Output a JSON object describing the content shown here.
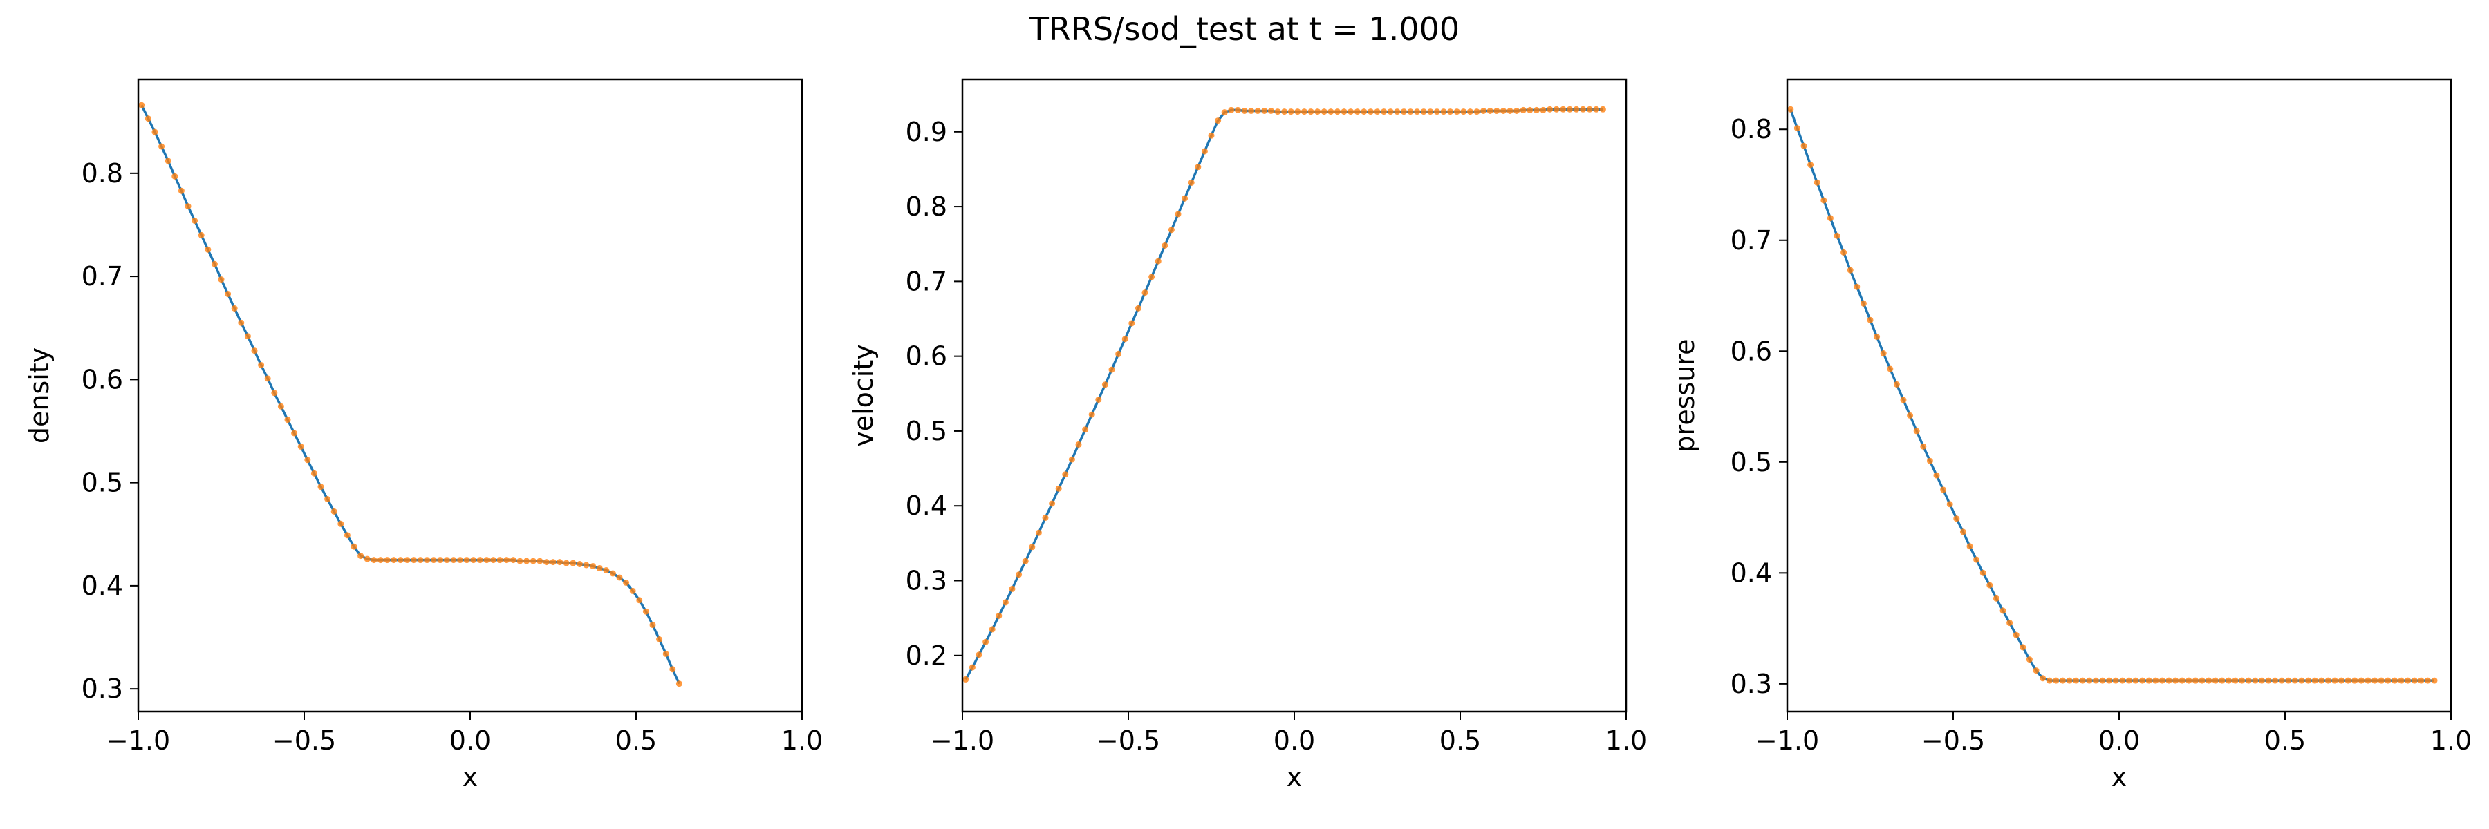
{
  "figure": {
    "title": "TRRS/sod_test at t = 1.000"
  },
  "colors": {
    "line": "#1f77b4",
    "marker": "#ff7f0e",
    "axes": "#000000",
    "background": "#ffffff"
  },
  "chart_data": [
    {
      "type": "line",
      "title": "",
      "xlabel": "x",
      "ylabel": "density",
      "xlim": [
        -1.0,
        1.0
      ],
      "ylim": [
        0.278,
        0.891
      ],
      "xticks": [
        -1.0,
        -0.5,
        0.0,
        0.5,
        1.0
      ],
      "xtick_labels": [
        "−1.0",
        "−0.5",
        "0.0",
        "0.5",
        "1.0"
      ],
      "yticks": [
        0.3,
        0.4,
        0.5,
        0.6,
        0.7,
        0.8
      ],
      "ytick_labels": [
        "0.3",
        "0.4",
        "0.5",
        "0.6",
        "0.7",
        "0.8"
      ],
      "series": [
        {
          "name": "density",
          "x_start": -0.99,
          "x_step": 0.02,
          "values": [
            0.866,
            0.853,
            0.84,
            0.826,
            0.812,
            0.797,
            0.783,
            0.768,
            0.754,
            0.74,
            0.726,
            0.712,
            0.697,
            0.683,
            0.669,
            0.655,
            0.642,
            0.628,
            0.614,
            0.601,
            0.587,
            0.574,
            0.561,
            0.548,
            0.535,
            0.522,
            0.509,
            0.496,
            0.484,
            0.472,
            0.46,
            0.449,
            0.438,
            0.429,
            0.426,
            0.425,
            0.425,
            0.425,
            0.425,
            0.425,
            0.425,
            0.425,
            0.425,
            0.425,
            0.425,
            0.425,
            0.425,
            0.425,
            0.425,
            0.425,
            0.425,
            0.425,
            0.425,
            0.425,
            0.425,
            0.425,
            0.425,
            0.424,
            0.424,
            0.424,
            0.424,
            0.423,
            0.423,
            0.423,
            0.422,
            0.422,
            0.421,
            0.42,
            0.419,
            0.417,
            0.415,
            0.412,
            0.408,
            0.403,
            0.395,
            0.386,
            0.375,
            0.362,
            0.348,
            0.334,
            0.319,
            0.305
          ]
        }
      ]
    },
    {
      "type": "line",
      "title": "",
      "xlabel": "x",
      "ylabel": "velocity",
      "xlim": [
        -1.0,
        1.0
      ],
      "ylim": [
        0.125,
        0.97
      ],
      "xticks": [
        -1.0,
        -0.5,
        0.0,
        0.5,
        1.0
      ],
      "xtick_labels": [
        "−1.0",
        "−0.5",
        "0.0",
        "0.5",
        "1.0"
      ],
      "yticks": [
        0.2,
        0.3,
        0.4,
        0.5,
        0.6,
        0.7,
        0.8,
        0.9
      ],
      "ytick_labels": [
        "0.2",
        "0.3",
        "0.4",
        "0.5",
        "0.6",
        "0.7",
        "0.8",
        "0.9"
      ],
      "series": [
        {
          "name": "velocity",
          "x_start": -0.99,
          "x_step": 0.02,
          "values": [
            0.168,
            0.184,
            0.201,
            0.218,
            0.235,
            0.253,
            0.271,
            0.289,
            0.308,
            0.326,
            0.345,
            0.364,
            0.384,
            0.403,
            0.423,
            0.442,
            0.462,
            0.482,
            0.502,
            0.522,
            0.542,
            0.562,
            0.582,
            0.603,
            0.623,
            0.644,
            0.664,
            0.685,
            0.706,
            0.727,
            0.748,
            0.769,
            0.79,
            0.811,
            0.832,
            0.853,
            0.874,
            0.895,
            0.915,
            0.926,
            0.929,
            0.929,
            0.928,
            0.928,
            0.928,
            0.928,
            0.928,
            0.927,
            0.927,
            0.927,
            0.927,
            0.927,
            0.927,
            0.927,
            0.927,
            0.927,
            0.927,
            0.927,
            0.927,
            0.927,
            0.927,
            0.927,
            0.927,
            0.927,
            0.927,
            0.927,
            0.927,
            0.927,
            0.927,
            0.927,
            0.927,
            0.927,
            0.927,
            0.927,
            0.927,
            0.927,
            0.927,
            0.927,
            0.928,
            0.928,
            0.928,
            0.928,
            0.928,
            0.928,
            0.929,
            0.929,
            0.929,
            0.929,
            0.93,
            0.93,
            0.93,
            0.93,
            0.93,
            0.93,
            0.93,
            0.93,
            0.93
          ]
        }
      ]
    },
    {
      "type": "line",
      "title": "",
      "xlabel": "x",
      "ylabel": "pressure",
      "xlim": [
        -1.0,
        1.0
      ],
      "ylim": [
        0.275,
        0.845
      ],
      "xticks": [
        -1.0,
        -0.5,
        0.0,
        0.5,
        1.0
      ],
      "xtick_labels": [
        "−1.0",
        "−0.5",
        "0.0",
        "0.5",
        "1.0"
      ],
      "yticks": [
        0.3,
        0.4,
        0.5,
        0.6,
        0.7,
        0.8
      ],
      "ytick_labels": [
        "0.3",
        "0.4",
        "0.5",
        "0.6",
        "0.7",
        "0.8"
      ],
      "series": [
        {
          "name": "pressure",
          "x_start": -0.99,
          "x_step": 0.02,
          "values": [
            0.818,
            0.801,
            0.785,
            0.768,
            0.752,
            0.736,
            0.72,
            0.704,
            0.689,
            0.673,
            0.658,
            0.643,
            0.628,
            0.613,
            0.598,
            0.584,
            0.57,
            0.556,
            0.542,
            0.528,
            0.514,
            0.501,
            0.488,
            0.475,
            0.462,
            0.449,
            0.437,
            0.424,
            0.412,
            0.4,
            0.389,
            0.377,
            0.366,
            0.355,
            0.344,
            0.333,
            0.322,
            0.312,
            0.305,
            0.303,
            0.303,
            0.303,
            0.303,
            0.303,
            0.303,
            0.303,
            0.303,
            0.303,
            0.303,
            0.303,
            0.303,
            0.303,
            0.303,
            0.303,
            0.303,
            0.303,
            0.303,
            0.303,
            0.303,
            0.303,
            0.303,
            0.303,
            0.303,
            0.303,
            0.303,
            0.303,
            0.303,
            0.303,
            0.303,
            0.303,
            0.303,
            0.303,
            0.303,
            0.303,
            0.303,
            0.303,
            0.303,
            0.303,
            0.303,
            0.303,
            0.303,
            0.303,
            0.303,
            0.303,
            0.303,
            0.303,
            0.303,
            0.303,
            0.303,
            0.303,
            0.303,
            0.303,
            0.303,
            0.303,
            0.303,
            0.303,
            0.303,
            0.303
          ]
        }
      ]
    }
  ]
}
